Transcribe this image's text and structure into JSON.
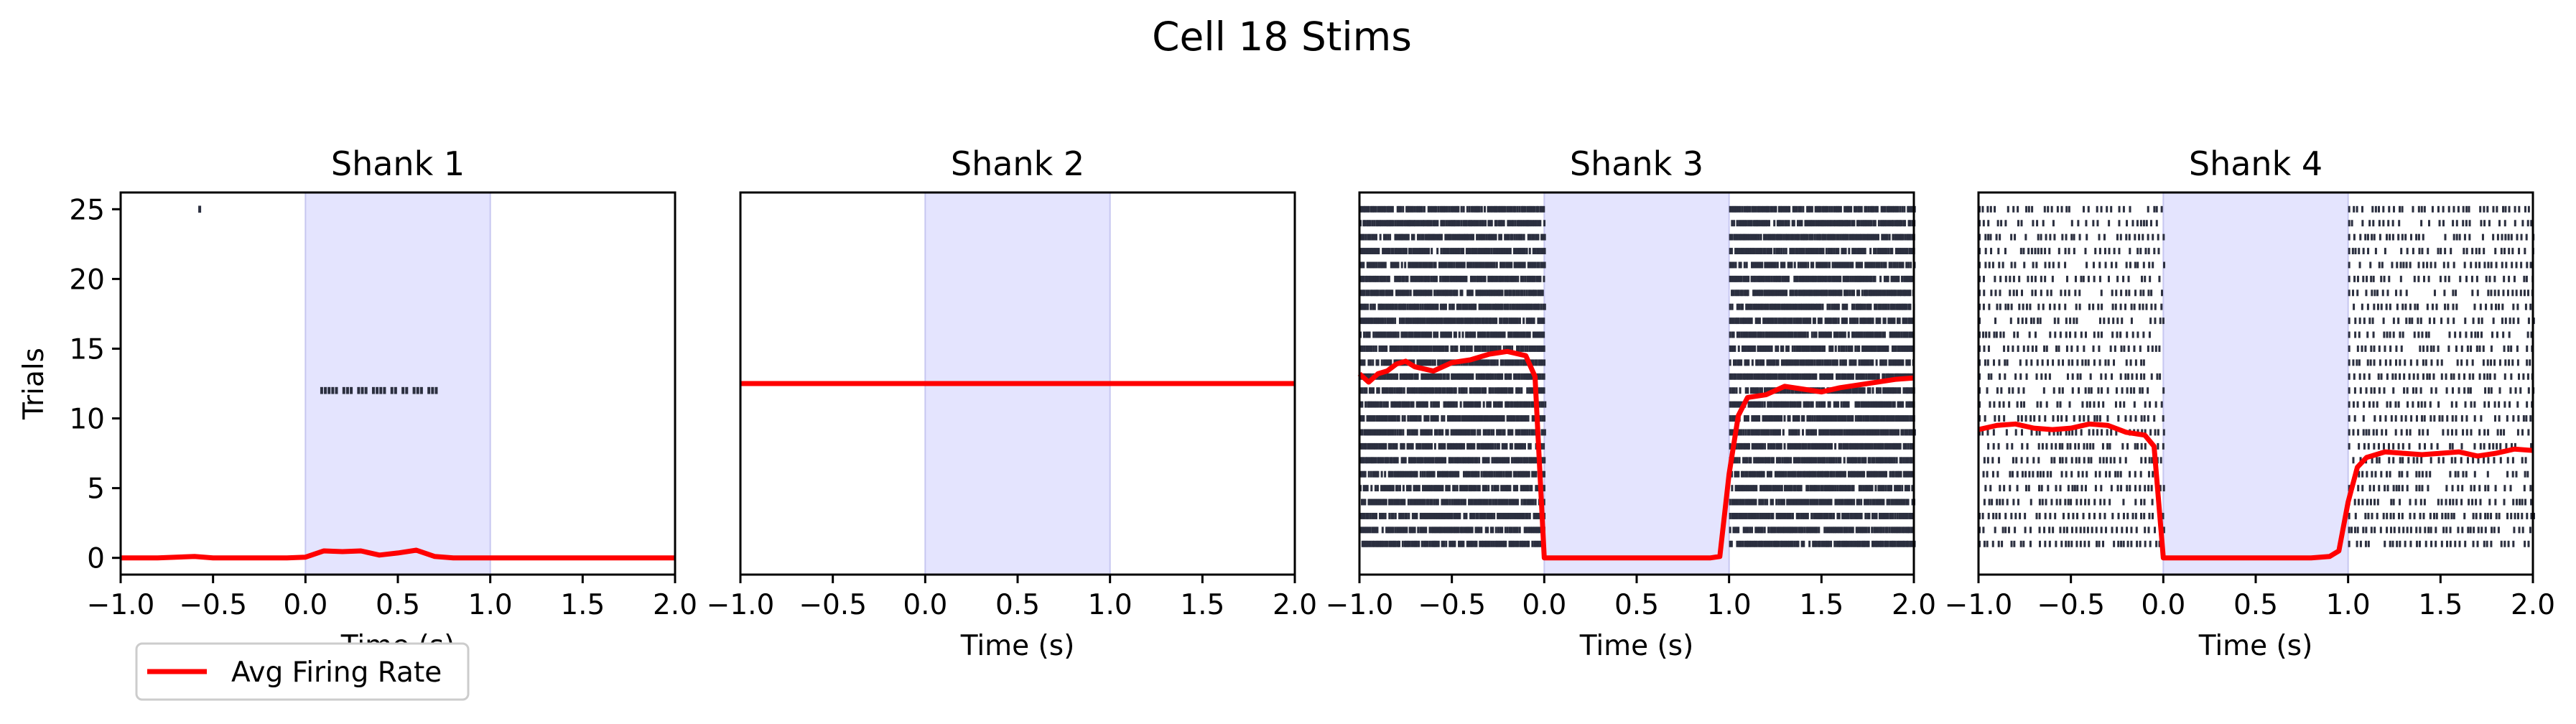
{
  "figure": {
    "title": "Cell 18 Stims"
  },
  "legend": {
    "label": "Avg Firing Rate",
    "color": "#ff0000"
  },
  "colors": {
    "stim_shade": "#e4e4fe",
    "stim_edge": "#c7c7f0",
    "raster": "#2b2f3f",
    "rate_line": "#ff0000",
    "axes": "#000000"
  },
  "chart_data": [
    {
      "type": "line",
      "title": "Shank 1",
      "xlabel": "Time (s)",
      "ylabel": "Trials",
      "xlim": [
        -1.0,
        2.0
      ],
      "ylim": [
        -1.2,
        26.2
      ],
      "x_ticks": [
        "−1.0",
        "−0.5",
        "0.0",
        "0.5",
        "1.0",
        "1.5",
        "2.0"
      ],
      "y_ticks": [
        "0",
        "5",
        "10",
        "15",
        "20",
        "25"
      ],
      "stim_window": [
        0.0,
        1.0
      ],
      "raster": {
        "trials": [
          25,
          12
        ],
        "trial_25_spikes": [
          -0.58
        ],
        "trial_12_spikes": [
          0.08,
          0.1,
          0.12,
          0.14,
          0.16,
          0.2,
          0.22,
          0.24,
          0.28,
          0.3,
          0.32,
          0.36,
          0.38,
          0.4,
          0.42,
          0.46,
          0.48,
          0.52,
          0.54,
          0.58,
          0.6,
          0.62,
          0.66,
          0.68,
          0.7
        ]
      },
      "series": [
        {
          "name": "Avg Firing Rate",
          "x": [
            -1.0,
            -0.9,
            -0.8,
            -0.7,
            -0.6,
            -0.5,
            -0.4,
            -0.3,
            -0.2,
            -0.1,
            0.0,
            0.1,
            0.2,
            0.3,
            0.4,
            0.5,
            0.6,
            0.7,
            0.8,
            0.9,
            1.0,
            1.1,
            1.2,
            1.3,
            1.4,
            1.5,
            1.6,
            1.7,
            1.8,
            1.9,
            2.0
          ],
          "y": [
            0,
            0,
            0,
            0.05,
            0.1,
            0,
            0,
            0,
            0,
            0,
            0.05,
            0.5,
            0.45,
            0.5,
            0.2,
            0.35,
            0.55,
            0.1,
            0,
            0,
            0,
            0,
            0,
            0,
            0,
            0,
            0,
            0,
            0,
            0,
            0
          ]
        }
      ]
    },
    {
      "type": "line",
      "title": "Shank 2",
      "xlabel": "Time (s)",
      "xlim": [
        -1.0,
        2.0
      ],
      "ylim": [
        -1.2,
        26.2
      ],
      "x_ticks": [
        "−1.0",
        "−0.5",
        "0.0",
        "0.5",
        "1.0",
        "1.5",
        "2.0"
      ],
      "stim_window": [
        0.0,
        1.0
      ],
      "raster": {
        "trials": []
      },
      "series": [
        {
          "name": "Avg Firing Rate",
          "x": [
            -1.0,
            2.0
          ],
          "y": [
            12.5,
            12.5
          ]
        }
      ]
    },
    {
      "type": "line",
      "title": "Shank 3",
      "xlabel": "Time (s)",
      "xlim": [
        -1.0,
        2.0
      ],
      "ylim": [
        -1.2,
        26.2
      ],
      "x_ticks": [
        "−1.0",
        "−0.5",
        "0.0",
        "0.5",
        "1.0",
        "1.5",
        "2.0"
      ],
      "stim_window": [
        0.0,
        1.0
      ],
      "raster": {
        "trials_from": 1,
        "trials_to": 25,
        "active_windows": [
          [
            -1.0,
            0.0
          ],
          [
            1.0,
            2.0
          ]
        ],
        "density": "dense",
        "seed": 3
      },
      "series": [
        {
          "name": "Avg Firing Rate",
          "x": [
            -1.0,
            -0.95,
            -0.9,
            -0.85,
            -0.8,
            -0.75,
            -0.7,
            -0.6,
            -0.5,
            -0.4,
            -0.3,
            -0.2,
            -0.1,
            -0.05,
            0.0,
            0.1,
            0.2,
            0.3,
            0.4,
            0.5,
            0.6,
            0.7,
            0.8,
            0.9,
            0.95,
            1.0,
            1.05,
            1.1,
            1.2,
            1.3,
            1.4,
            1.5,
            1.6,
            1.7,
            1.8,
            1.9,
            2.0
          ],
          "y": [
            13.2,
            12.6,
            13.2,
            13.4,
            13.9,
            14.1,
            13.7,
            13.4,
            14.0,
            14.2,
            14.6,
            14.8,
            14.5,
            13.0,
            0.0,
            0.0,
            0.0,
            0.0,
            0.0,
            0.0,
            0.0,
            0.0,
            0.0,
            0.0,
            0.1,
            6.0,
            10.2,
            11.5,
            11.7,
            12.3,
            12.1,
            11.9,
            12.2,
            12.4,
            12.6,
            12.8,
            12.9
          ]
        }
      ]
    },
    {
      "type": "line",
      "title": "Shank 4",
      "xlabel": "Time (s)",
      "xlim": [
        -1.0,
        2.0
      ],
      "ylim": [
        -1.2,
        26.2
      ],
      "x_ticks": [
        "−1.0",
        "−0.5",
        "0.0",
        "0.5",
        "1.0",
        "1.5",
        "2.0"
      ],
      "stim_window": [
        0.0,
        1.0
      ],
      "raster": {
        "trials_from": 1,
        "trials_to": 25,
        "active_windows": [
          [
            -1.0,
            0.0
          ],
          [
            1.0,
            2.0
          ]
        ],
        "density": "medium",
        "seed": 7
      },
      "series": [
        {
          "name": "Avg Firing Rate",
          "x": [
            -1.0,
            -0.9,
            -0.8,
            -0.7,
            -0.6,
            -0.5,
            -0.4,
            -0.3,
            -0.2,
            -0.1,
            -0.05,
            0.0,
            0.1,
            0.2,
            0.3,
            0.4,
            0.5,
            0.6,
            0.7,
            0.8,
            0.9,
            0.95,
            1.0,
            1.05,
            1.1,
            1.2,
            1.3,
            1.4,
            1.5,
            1.6,
            1.7,
            1.8,
            1.9,
            2.0
          ],
          "y": [
            9.2,
            9.5,
            9.6,
            9.3,
            9.2,
            9.3,
            9.6,
            9.5,
            9.0,
            8.8,
            8.0,
            0.0,
            0.0,
            0.0,
            0.0,
            0.0,
            0.0,
            0.0,
            0.0,
            0.0,
            0.1,
            0.5,
            4.0,
            6.5,
            7.2,
            7.6,
            7.5,
            7.4,
            7.5,
            7.6,
            7.3,
            7.5,
            7.8,
            7.7
          ]
        }
      ]
    }
  ]
}
